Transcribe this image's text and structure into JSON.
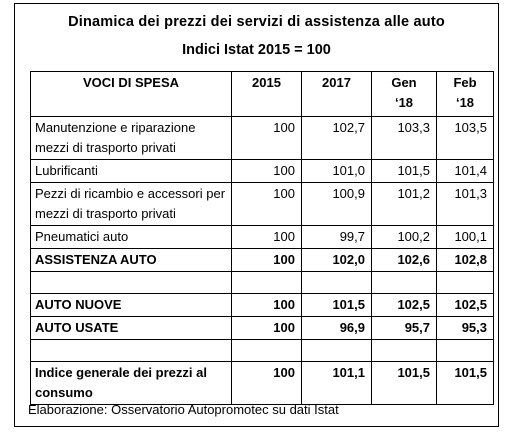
{
  "header": {
    "title": "Dinamica dei prezzi dei servizi di assistenza alle auto",
    "subtitle": "Indici Istat 2015 = 100"
  },
  "table": {
    "columns": [
      "VOCI DI SPESA",
      "2015",
      "2017",
      "Gen\n‘18",
      "Feb\n‘18"
    ],
    "rows": [
      [
        "Manutenzione e riparazione mezzi di trasporto privati",
        "100",
        "102,7",
        "103,3",
        "103,5"
      ],
      [
        "Lubrificanti",
        "100",
        "101,0",
        "101,5",
        "101,4"
      ],
      [
        "Pezzi di ricambio e accessori per mezzi di trasporto privati",
        "100",
        "100,9",
        "101,2",
        "101,3"
      ],
      [
        "Pneumatici auto",
        "100",
        "99,7",
        "100,2",
        "100,1"
      ],
      [
        "ASSISTENZA AUTO",
        "100",
        "102,0",
        "102,6",
        "102,8"
      ],
      [
        "AUTO NUOVE",
        "100",
        "101,5",
        "102,5",
        "102,5"
      ],
      [
        "AUTO USATE",
        "100",
        "96,9",
        "95,7",
        "95,3"
      ],
      [
        "Indice generale dei prezzi al consumo",
        "100",
        "101,1",
        "101,5",
        "101,5"
      ]
    ]
  },
  "footer": {
    "source": "Elaborazione: Osservatorio Autopromotec su dati Istat"
  }
}
